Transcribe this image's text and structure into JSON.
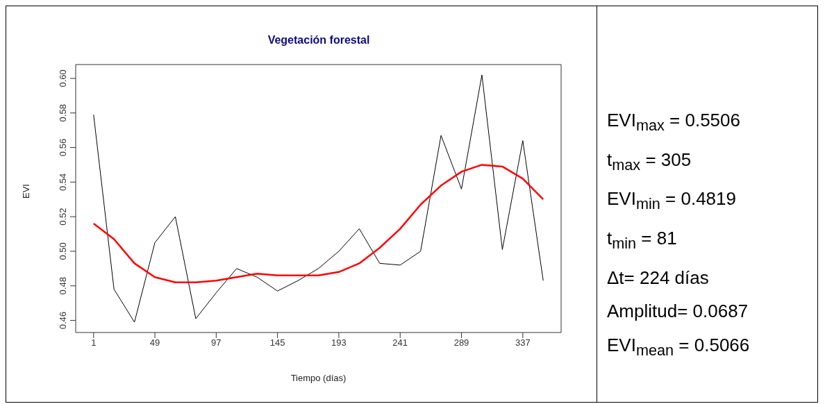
{
  "chart_data": {
    "type": "line",
    "title": "Vegetación forestal",
    "xlabel": "Tiempo (días)",
    "ylabel": "EVI",
    "x": [
      1,
      17,
      33,
      49,
      65,
      81,
      97,
      113,
      129,
      145,
      161,
      177,
      193,
      209,
      225,
      241,
      257,
      273,
      289,
      305,
      321,
      337,
      353
    ],
    "series": [
      {
        "color": "#000000",
        "values": [
          0.579,
          0.478,
          0.459,
          0.505,
          0.52,
          0.461,
          0.476,
          0.49,
          0.485,
          0.477,
          0.483,
          0.49,
          0.5,
          0.513,
          0.493,
          0.492,
          0.5,
          0.567,
          0.536,
          0.602,
          0.501,
          0.564,
          0.483
        ]
      },
      {
        "color": "#ff0000",
        "values": [
          0.516,
          0.507,
          0.493,
          0.485,
          0.482,
          0.482,
          0.483,
          0.485,
          0.487,
          0.486,
          0.486,
          0.486,
          0.488,
          0.493,
          0.502,
          0.513,
          0.527,
          0.538,
          0.546,
          0.55,
          0.549,
          0.542,
          0.53
        ]
      }
    ],
    "xlim": [
      -13,
      367
    ],
    "xticks": [
      1,
      49,
      97,
      145,
      193,
      241,
      289,
      337
    ],
    "ylim": [
      0.453,
      0.608
    ],
    "yticks": [
      {
        "value": 0.46,
        "label": "0.46"
      },
      {
        "value": 0.48,
        "label": "0.48"
      },
      {
        "value": 0.5,
        "label": "0.50"
      },
      {
        "value": 0.52,
        "label": "0.52"
      },
      {
        "value": 0.54,
        "label": "0.54"
      },
      {
        "value": 0.56,
        "label": "0.56"
      },
      {
        "value": 0.58,
        "label": "0.58"
      },
      {
        "value": 0.6,
        "label": "0.60"
      }
    ],
    "grid": false,
    "legend": false,
    "marker": "none",
    "line_style": "solid",
    "annotations": [
      "EVI$_{max}$ = 0.5506",
      "t$_{max}$ = 305",
      "EVI$_{min}$ = 0.4819",
      "t$_{min}$ = 81",
      "Δt= 224 días",
      "Amplitud= 0.0687",
      "EVI$_{mean}$ = 0.5066"
    ]
  }
}
